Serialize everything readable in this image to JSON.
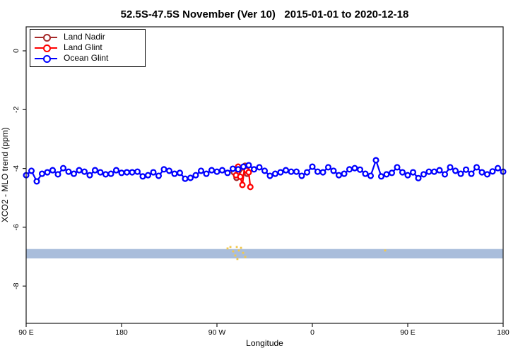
{
  "title": "52.5S-47.5S November (Ver 10)   2015-01-01 to 2020-12-18",
  "axes": {
    "x": {
      "label": "Longitude",
      "ticks": [
        {
          "lon": 90,
          "label": "90 E"
        },
        {
          "lon": 180,
          "label": "180"
        },
        {
          "lon": 270,
          "label": "90 W"
        },
        {
          "lon": 360,
          "label": "0"
        },
        {
          "lon": 450,
          "label": "90 E"
        },
        {
          "lon": 540,
          "label": "180"
        }
      ]
    },
    "y": {
      "label": "XCO2 - MLO trend (ppm)",
      "ticks": [
        {
          "value": 0,
          "label": "0"
        },
        {
          "value": -2,
          "label": "-2"
        },
        {
          "value": -4,
          "label": "-4"
        },
        {
          "value": -6,
          "label": "-6"
        },
        {
          "value": -8,
          "label": "-8"
        }
      ]
    }
  },
  "legend": {
    "items": [
      {
        "label": "Land Nadir",
        "color": "#A52A2A"
      },
      {
        "label": "Land Glint",
        "color": "#FF0000"
      },
      {
        "label": "Ocean Glint",
        "color": "#0000FF"
      }
    ]
  },
  "chart_data": {
    "type": "line",
    "title": "52.5S-47.5S November (Ver 10)   2015-01-01 to 2020-12-18",
    "xlabel": "Longitude",
    "ylabel": "XCO2 - MLO trend (ppm)",
    "x_axis_note": "longitude axis wraps: 90E -> 180 -> 90W -> 0 -> 90E -> 180, plotted as 90..540 unwrapped degrees",
    "xlim": [
      90,
      540
    ],
    "ylim": [
      0.8,
      -9.3
    ],
    "grid": false,
    "legend_position": "top-left",
    "marker": "open-circle",
    "series": [
      {
        "name": "Land Nadir",
        "color": "#A52A2A",
        "points": [
          [
            286.0,
            -4.13
          ],
          [
            288.5,
            -4.32
          ],
          [
            296.5,
            -3.91
          ],
          [
            298.5,
            -4.18
          ]
        ]
      },
      {
        "name": "Land Glint",
        "color": "#FF0000",
        "points": [
          [
            288.0,
            -4.23
          ],
          [
            290.0,
            -3.94
          ],
          [
            292.0,
            -4.28
          ],
          [
            294.0,
            -4.56
          ],
          [
            296.0,
            -3.97
          ],
          [
            298.0,
            -4.06
          ],
          [
            300.0,
            -4.13
          ],
          [
            301.5,
            -4.63
          ]
        ]
      },
      {
        "name": "Ocean Glint",
        "color": "#0000FF",
        "lon_start": 90,
        "lon_step": 5,
        "values": [
          -4.23,
          -4.08,
          -4.44,
          -4.18,
          -4.13,
          -4.06,
          -4.2,
          -3.99,
          -4.11,
          -4.18,
          -4.06,
          -4.11,
          -4.23,
          -4.06,
          -4.13,
          -4.2,
          -4.18,
          -4.06,
          -4.15,
          -4.13,
          -4.13,
          -4.11,
          -4.27,
          -4.23,
          -4.13,
          -4.25,
          -4.03,
          -4.08,
          -4.18,
          -4.15,
          -4.35,
          -4.32,
          -4.23,
          -4.08,
          -4.18,
          -4.06,
          -4.11,
          -4.06,
          -4.15,
          -4.01,
          -4.03,
          -3.94,
          -3.89,
          -4.03,
          -3.96,
          -4.08,
          -4.25,
          -4.18,
          -4.13,
          -4.06,
          -4.11,
          -4.11,
          -4.25,
          -4.13,
          -3.94,
          -4.11,
          -4.13,
          -3.96,
          -4.08,
          -4.23,
          -4.18,
          -4.03,
          -3.99,
          -4.04,
          -4.18,
          -4.25,
          -3.72,
          -4.27,
          -4.2,
          -4.15,
          -3.96,
          -4.13,
          -4.23,
          -4.13,
          -4.33,
          -4.2,
          -4.11,
          -4.11,
          -4.06,
          -4.2,
          -3.96,
          -4.08,
          -4.18,
          -4.04,
          -4.18,
          -3.96,
          -4.13,
          -4.2,
          -4.1,
          -3.99,
          -4.11
        ]
      }
    ],
    "band": {
      "name": "horizontal band",
      "value_top": -6.74,
      "value_bottom": -7.06,
      "color": "#A9BDDB",
      "extent": "full x range"
    },
    "flagged_points": {
      "name": "yellow flagged marks",
      "color": "#F2C84B",
      "points": [
        [
          280.0,
          -6.72
        ],
        [
          282.7,
          -6.67
        ],
        [
          285.3,
          -6.82
        ],
        [
          287.3,
          -6.96
        ],
        [
          288.7,
          -6.67
        ],
        [
          289.3,
          -7.08
        ],
        [
          290.7,
          -6.79
        ],
        [
          292.7,
          -6.7
        ],
        [
          294.7,
          -6.87
        ],
        [
          296.7,
          -7.01
        ],
        [
          428.7,
          -6.79
        ]
      ]
    }
  }
}
